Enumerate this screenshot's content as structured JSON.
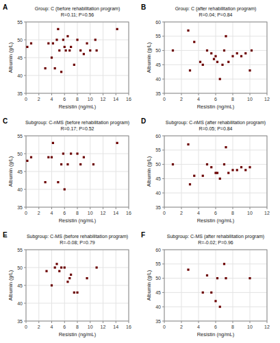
{
  "chart_data": [
    {
      "type": "scatter",
      "annotations": [
        "A"
      ],
      "title": "Group: C (before rehabilitation program)\nR=0.11; P=0.56",
      "xlabel": "Resistin (ng/mL)",
      "ylabel": "Albumin (g/L)",
      "xlim": [
        0,
        16
      ],
      "ylim": [
        35,
        55
      ],
      "xticks": [
        0,
        2,
        4,
        6,
        8,
        10,
        12,
        14,
        16
      ],
      "yticks": [
        35,
        40,
        45,
        50,
        55
      ],
      "x": [
        0.2,
        0.8,
        3.0,
        3.5,
        4.0,
        4.2,
        4.5,
        4.8,
        5.0,
        5.2,
        5.5,
        5.8,
        6.0,
        6.2,
        6.5,
        6.8,
        7.0,
        7.5,
        8.0,
        8.5,
        9.0,
        9.5,
        10.0,
        10.8,
        11.0,
        14.2
      ],
      "values": [
        48,
        49,
        42,
        49,
        45,
        49,
        42,
        50,
        53,
        47,
        41,
        50,
        48,
        47,
        51,
        47,
        48,
        43,
        50,
        47,
        46,
        49,
        47,
        50,
        47,
        53
      ],
      "color": "#6b0000",
      "marker": "square",
      "grid": true
    },
    {
      "type": "scatter",
      "annotations": [
        "B"
      ],
      "title": "Group: C (after rehabilitation program)\nR=0.04; P=0.84",
      "xlabel": "Resistin (ng/mL)",
      "ylabel": "Albumin (g/L)",
      "xlim": [
        0,
        12
      ],
      "ylim": [
        35,
        60
      ],
      "xticks": [
        0,
        2,
        4,
        6,
        8,
        10,
        12
      ],
      "yticks": [
        35,
        40,
        45,
        50,
        55,
        60
      ],
      "x": [
        1.0,
        2.8,
        3.0,
        3.5,
        4.2,
        4.5,
        5.0,
        5.5,
        5.8,
        6.0,
        6.2,
        6.5,
        6.8,
        7.0,
        7.2,
        7.5,
        8.0,
        8.5,
        9.0,
        9.5,
        10.0,
        10.2
      ],
      "values": [
        50,
        57,
        43,
        53,
        46,
        45,
        50,
        49,
        47,
        48,
        46,
        40,
        45,
        50,
        55,
        46,
        48,
        49,
        48,
        49,
        43,
        50
      ],
      "color": "#6b0000",
      "marker": "square",
      "grid": true
    },
    {
      "type": "scatter",
      "annotations": [
        "C"
      ],
      "title": "Subgroup: C-nMS (before rehabilitation program)\nR=0.17; P=0.52",
      "xlabel": "Resistin (ng/mL)",
      "ylabel": "Albumin (g/L)",
      "xlim": [
        0,
        16
      ],
      "ylim": [
        35,
        55
      ],
      "xticks": [
        0,
        2,
        4,
        6,
        8,
        10,
        12,
        14,
        16
      ],
      "yticks": [
        35,
        40,
        45,
        50,
        55
      ],
      "x": [
        0.2,
        0.8,
        3.0,
        3.5,
        4.0,
        4.2,
        5.0,
        5.5,
        5.8,
        6.0,
        6.5,
        7.0,
        8.0,
        8.5,
        9.0,
        10.5,
        14.2
      ],
      "values": [
        48,
        49,
        42,
        49,
        49,
        53,
        42,
        47,
        50,
        40,
        47,
        50,
        50,
        47,
        49,
        47,
        53
      ],
      "color": "#6b0000",
      "marker": "square",
      "grid": true
    },
    {
      "type": "scatter",
      "annotations": [
        "D"
      ],
      "title": "Subgroup: C-nMS (after rehabilitation program)\nR=0.05; P=0.84",
      "xlabel": "Resistin (ng/mL)",
      "ylabel": "Albumin (g/L)",
      "xlim": [
        0,
        12
      ],
      "ylim": [
        35,
        60
      ],
      "xticks": [
        0,
        2,
        4,
        6,
        8,
        10,
        12
      ],
      "yticks": [
        35,
        40,
        45,
        50,
        55,
        60
      ],
      "x": [
        1.0,
        2.8,
        3.0,
        3.5,
        4.5,
        5.0,
        5.5,
        6.0,
        6.2,
        6.5,
        7.0,
        7.2,
        7.5,
        8.0,
        8.5,
        9.0,
        9.5,
        10.0
      ],
      "values": [
        50,
        57,
        43,
        46,
        46,
        50,
        49,
        47,
        47,
        45,
        50,
        56,
        47,
        48,
        48,
        49,
        48,
        49
      ],
      "color": "#6b0000",
      "marker": "square",
      "grid": true
    },
    {
      "type": "scatter",
      "annotations": [
        "E"
      ],
      "title": "Subgroup: C-MS (before rehabilitation program)\nR=-0.08; P=0.79",
      "xlabel": "Resistin (ng/mL)",
      "ylabel": "Albumin (g/L)",
      "xlim": [
        0,
        16
      ],
      "ylim": [
        35,
        55
      ],
      "xticks": [
        0,
        2,
        4,
        6,
        8,
        10,
        12,
        14,
        16
      ],
      "yticks": [
        35,
        40,
        45,
        50,
        55
      ],
      "x": [
        3.2,
        4.0,
        4.5,
        4.8,
        5.2,
        5.5,
        6.0,
        6.5,
        6.8,
        7.0,
        7.5,
        8.0,
        9.5,
        11.0
      ],
      "values": [
        49,
        45,
        50,
        51,
        49,
        50,
        50,
        46,
        47,
        48,
        43,
        43,
        47,
        50
      ],
      "color": "#6b0000",
      "marker": "square",
      "grid": true
    },
    {
      "type": "scatter",
      "annotations": [
        "F"
      ],
      "title": "Subgroup: C-MS (after rehabilitation program)\nR=-0.02; P=0.96",
      "xlabel": "Resistin (ng/mL)",
      "ylabel": "Albumin (g/L)",
      "xlim": [
        0,
        12
      ],
      "ylim": [
        35,
        60
      ],
      "xticks": [
        0,
        2,
        4,
        6,
        8,
        10,
        12
      ],
      "yticks": [
        35,
        40,
        45,
        50,
        55,
        60
      ],
      "x": [
        2.8,
        4.5,
        5.0,
        5.5,
        6.0,
        6.2,
        6.5,
        7.0,
        7.2,
        10.0
      ],
      "values": [
        53,
        45,
        51,
        45,
        42,
        50,
        40,
        55,
        50,
        50
      ],
      "color": "#6b0000",
      "marker": "square",
      "grid": true
    }
  ]
}
